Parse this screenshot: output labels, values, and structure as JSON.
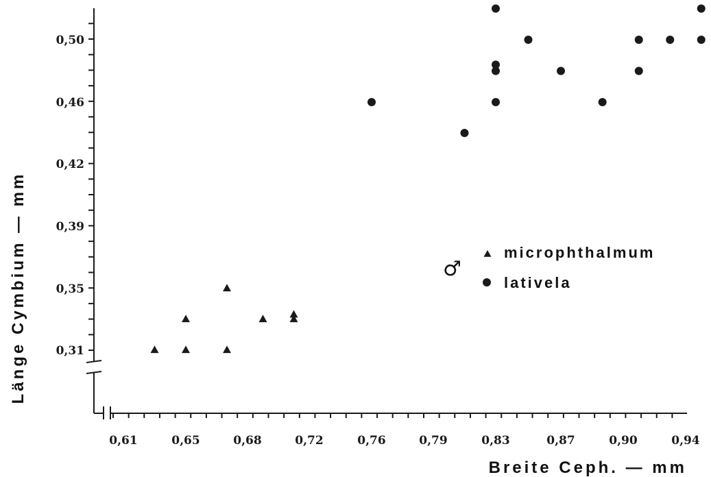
{
  "chart_data": {
    "type": "scatter",
    "xlabel": "Breite Ceph. — mm",
    "ylabel": "Länge Cymbium — mm",
    "x_ticks": [
      "0,61",
      "0,65",
      "0,68",
      "0,72",
      "0,76",
      "0,79",
      "0,83",
      "0,87",
      "0,90",
      "0,94"
    ],
    "y_ticks": [
      "0,31",
      "0,35",
      "0,39",
      "0,42",
      "0,46",
      "0,50"
    ],
    "grid": false,
    "legend_position": "right",
    "legend_symbol": "♂",
    "series": [
      {
        "name": "microphthalmum",
        "marker": "triangle",
        "color": "#1a1a1a",
        "points": [
          {
            "x": 0.63,
            "y": 0.31
          },
          {
            "x": 0.65,
            "y": 0.31
          },
          {
            "x": 0.67,
            "y": 0.31
          },
          {
            "x": 0.65,
            "y": 0.33
          },
          {
            "x": 0.69,
            "y": 0.33
          },
          {
            "x": 0.67,
            "y": 0.35
          },
          {
            "x": 0.71,
            "y": 0.333
          },
          {
            "x": 0.71,
            "y": 0.33
          }
        ]
      },
      {
        "name": "lativela",
        "marker": "circle",
        "color": "#1a1a1a",
        "points": [
          {
            "x": 0.76,
            "y": 0.46
          },
          {
            "x": 0.81,
            "y": 0.44
          },
          {
            "x": 0.83,
            "y": 0.52
          },
          {
            "x": 0.83,
            "y": 0.484
          },
          {
            "x": 0.83,
            "y": 0.48
          },
          {
            "x": 0.83,
            "y": 0.46
          },
          {
            "x": 0.85,
            "y": 0.5
          },
          {
            "x": 0.87,
            "y": 0.48
          },
          {
            "x": 0.89,
            "y": 0.46
          },
          {
            "x": 0.91,
            "y": 0.5
          },
          {
            "x": 0.91,
            "y": 0.48
          },
          {
            "x": 0.93,
            "y": 0.5
          },
          {
            "x": 0.95,
            "y": 0.5
          },
          {
            "x": 0.95,
            "y": 0.52
          }
        ]
      }
    ]
  }
}
